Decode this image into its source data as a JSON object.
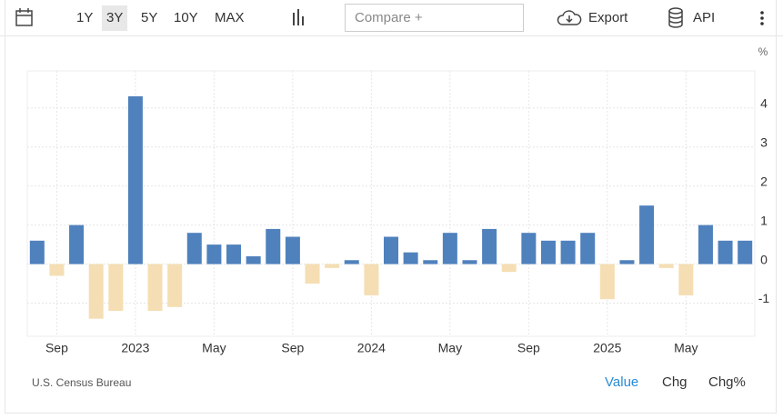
{
  "toolbar": {
    "ranges": [
      "1Y",
      "3Y",
      "5Y",
      "10Y",
      "MAX"
    ],
    "compare": "Compare +",
    "export": "Export",
    "api": "API"
  },
  "footer": {
    "source": "U.S. Census Bureau",
    "views": [
      "Value",
      "Chg",
      "Chg%"
    ]
  },
  "chart_data": {
    "type": "bar",
    "y_unit": "%",
    "categories": [
      null,
      "Sep",
      null,
      null,
      null,
      "2023",
      null,
      null,
      null,
      "May",
      null,
      null,
      null,
      "Sep",
      null,
      null,
      null,
      "2024",
      null,
      null,
      null,
      "May",
      null,
      null,
      null,
      "Sep",
      null,
      null,
      null,
      "2025",
      null,
      null,
      null,
      "May",
      null,
      null,
      null
    ],
    "values": [
      0.6,
      -0.3,
      1.0,
      -1.4,
      -1.2,
      4.3,
      -1.2,
      -1.1,
      0.8,
      0.5,
      0.5,
      0.2,
      0.9,
      0.7,
      -0.5,
      -0.1,
      0.1,
      -0.8,
      0.7,
      0.3,
      0.1,
      0.8,
      0.1,
      0.9,
      -0.2,
      0.8,
      0.6,
      0.6,
      0.8,
      -0.9,
      0.1,
      1.5,
      -0.1,
      -0.8,
      1.0,
      0.6,
      0.6
    ],
    "color": "#4f81bd",
    "negative_color": "#f5deb3",
    "ylim": [
      -1.85,
      4.95
    ],
    "yticks": [
      -1,
      0,
      1,
      2,
      3,
      4
    ],
    "grid": true
  }
}
